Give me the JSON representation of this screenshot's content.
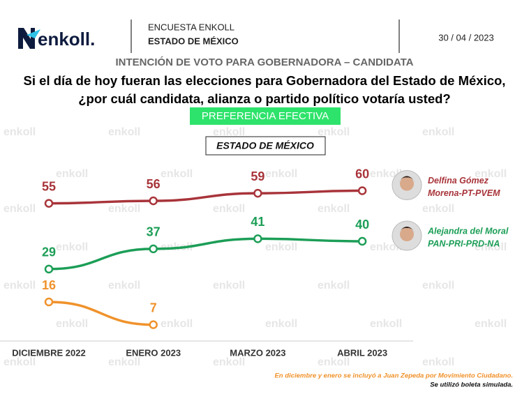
{
  "header": {
    "logo": "enkoll.",
    "survey": "ENCUESTA ENKOLL",
    "region": "ESTADO DE MÉXICO",
    "date": "30 / 04 / 2023"
  },
  "watermark": "enkoll",
  "chart_data": {
    "type": "line",
    "title": "INTENCIÓN DE VOTO PARA GOBERNADORA – CANDIDATA",
    "question": [
      "Si el día de hoy fueran las elecciones para Gobernadora del Estado de México,",
      "¿por cuál candidata, alianza o partido político votaría usted?"
    ],
    "badge": "PREFERENCIA EFECTIVA",
    "subtitle": "ESTADO DE MÉXICO",
    "categories": [
      "DICIEMBRE 2022",
      "ENERO 2023",
      "MARZO 2023",
      "ABRIL 2023"
    ],
    "series": [
      {
        "name": "Delfina Gómez",
        "party": "Morena-PT-PVEM",
        "color": "#a8343a",
        "values": [
          55,
          56,
          59,
          60
        ]
      },
      {
        "name": "Alejandra del Moral",
        "party": "PAN-PRI-PRD-NA",
        "color": "#1c9e57",
        "values": [
          29,
          37,
          41,
          40
        ]
      },
      {
        "color": "#f0922b",
        "values": [
          16,
          7,
          null,
          null
        ]
      }
    ],
    "notes": [
      "En diciembre y enero se incluyó a Juan Zepeda por Movimiento Ciudadano.",
      "Se utilizó boleta simulada."
    ]
  }
}
